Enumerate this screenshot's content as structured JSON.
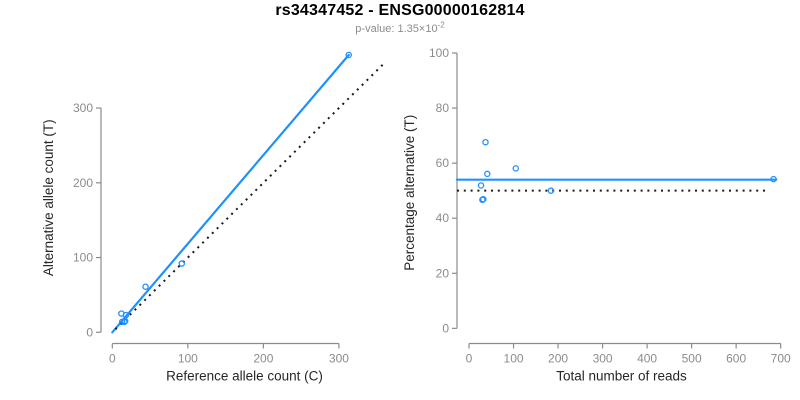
{
  "header": {
    "title": "rs34347452 - ENSG00000162814",
    "pvalue_label": "p-value: 1.35×10",
    "pvalue_exponent": "-2"
  },
  "colors": {
    "accent_blue": "#1E90FF",
    "line_black": "#1a1a1a",
    "axis_gray": "#8c8c8c",
    "tick_label_gray": "#8c8c8c",
    "axis_title_color": "#262626",
    "title_color": "#000000",
    "subtitle_gray": "#8c8c8c",
    "background": "#ffffff"
  },
  "samples": [
    {
      "ref": 12,
      "alt": 25,
      "total": 37,
      "pct_alt": 67.6
    },
    {
      "ref": 18,
      "alt": 23,
      "total": 41,
      "pct_alt": 56.1
    },
    {
      "ref": 13,
      "alt": 14,
      "total": 27,
      "pct_alt": 51.9
    },
    {
      "ref": 16,
      "alt": 14,
      "total": 30,
      "pct_alt": 46.7
    },
    {
      "ref": 17,
      "alt": 15,
      "total": 32,
      "pct_alt": 46.9
    },
    {
      "ref": 44,
      "alt": 61,
      "total": 105,
      "pct_alt": 58.1
    },
    {
      "ref": 92,
      "alt": 92,
      "total": 184,
      "pct_alt": 50.0
    },
    {
      "ref": 313,
      "alt": 371,
      "total": 684,
      "pct_alt": 54.2
    }
  ],
  "chart_data": [
    {
      "type": "scatter",
      "name": "allele-counts-scatter",
      "xlabel": "Reference allele count (C)",
      "ylabel": "Alternative allele count (T)",
      "xlim": [
        -15,
        365
      ],
      "ylim": [
        -15,
        375
      ],
      "xticks": [
        0,
        100,
        200,
        300
      ],
      "yticks": [
        0,
        100,
        200,
        300
      ],
      "grid": false,
      "legend": null,
      "points": [
        [
          12,
          25
        ],
        [
          18,
          23
        ],
        [
          13,
          14
        ],
        [
          16,
          14
        ],
        [
          17,
          15
        ],
        [
          44,
          61
        ],
        [
          92,
          92
        ],
        [
          313,
          371
        ]
      ],
      "lines": [
        {
          "name": "fitted-ratio-line",
          "style": "solid",
          "color": "blue",
          "from": [
            0,
            0
          ],
          "to": [
            313,
            371
          ]
        },
        {
          "name": "identity-line",
          "style": "dotted",
          "color": "black",
          "from": [
            4,
            4
          ],
          "to": [
            362,
            362
          ]
        }
      ]
    },
    {
      "type": "scatter",
      "name": "percentage-vs-depth-scatter",
      "xlabel": "Total number of reads",
      "ylabel": "Percentage alternative (T)",
      "xlim": [
        -27,
        712
      ],
      "ylim": [
        -5.5,
        104
      ],
      "xticks": [
        0,
        100,
        200,
        300,
        400,
        500,
        600,
        700
      ],
      "yticks": [
        0,
        20,
        40,
        60,
        80,
        100
      ],
      "grid": false,
      "legend": null,
      "points": [
        [
          37,
          67.6
        ],
        [
          41,
          56.1
        ],
        [
          27,
          51.9
        ],
        [
          30,
          46.7
        ],
        [
          32,
          46.9
        ],
        [
          105,
          58.1
        ],
        [
          184,
          50
        ],
        [
          684,
          54.2
        ]
      ],
      "lines": [
        {
          "name": "mean-percentage-line",
          "style": "solid",
          "color": "blue",
          "from": [
            -27,
            54
          ],
          "to": [
            690,
            54
          ]
        },
        {
          "name": "fifty-percent-line",
          "style": "dotted",
          "color": "black",
          "from": [
            -27,
            50
          ],
          "to": [
            668,
            50
          ]
        }
      ]
    }
  ]
}
